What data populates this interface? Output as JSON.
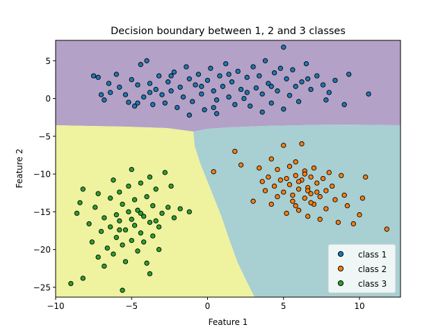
{
  "chart_data": {
    "type": "scatter",
    "title": "Decision boundary between 1, 2 and 3 classes",
    "xlabel": "Feature 1",
    "ylabel": "Feature 2",
    "xlim": [
      -10,
      12.7
    ],
    "ylim": [
      -26.3,
      7.7
    ],
    "xticks": [
      -10,
      -5,
      0,
      5,
      10
    ],
    "yticks": [
      5,
      0,
      -5,
      -10,
      -15,
      -20,
      -25
    ],
    "grid": false,
    "legend_placement": "lower-right",
    "regions": [
      {
        "name": "class 1 region",
        "color": "#b3a1c7"
      },
      {
        "name": "class 2 region",
        "color": "#a8cfd2"
      },
      {
        "name": "class 3 region",
        "color": "#eff29f"
      }
    ],
    "series": [
      {
        "name": "class 1",
        "color": "#1f77b4",
        "points": [
          [
            -7.5,
            3.0
          ],
          [
            -7.2,
            2.8
          ],
          [
            -7.0,
            0.5
          ],
          [
            -6.8,
            -0.2
          ],
          [
            -6.5,
            2.0
          ],
          [
            -6.4,
            0.8
          ],
          [
            -6.0,
            3.2
          ],
          [
            -5.8,
            1.5
          ],
          [
            -5.4,
            0.5
          ],
          [
            -5.2,
            -0.5
          ],
          [
            -5.0,
            2.5
          ],
          [
            -4.8,
            -1.0
          ],
          [
            -4.6,
            1.8
          ],
          [
            -4.4,
            4.5
          ],
          [
            -4.2,
            0.2
          ],
          [
            -4.0,
            5.0
          ],
          [
            -3.8,
            2.0
          ],
          [
            -3.6,
            -0.8
          ],
          [
            -3.4,
            1.2
          ],
          [
            -3.2,
            3.0
          ],
          [
            -3.0,
            0.5
          ],
          [
            -2.8,
            -0.6
          ],
          [
            -2.6,
            2.2
          ],
          [
            -2.4,
            1.0
          ],
          [
            -2.2,
            3.5
          ],
          [
            -2.0,
            -1.2
          ],
          [
            -1.8,
            1.5
          ],
          [
            -1.6,
            0.2
          ],
          [
            -1.4,
            4.2
          ],
          [
            -1.2,
            2.6
          ],
          [
            -1.0,
            -0.4
          ],
          [
            -0.8,
            1.8
          ],
          [
            -0.6,
            3.2
          ],
          [
            -0.4,
            0.6
          ],
          [
            -0.2,
            -1.5
          ],
          [
            0.0,
            2.4
          ],
          [
            0.2,
            4.0
          ],
          [
            0.4,
            1.0
          ],
          [
            0.6,
            -0.2
          ],
          [
            0.8,
            3.0
          ],
          [
            1.0,
            1.6
          ],
          [
            1.2,
            4.6
          ],
          [
            1.4,
            0.2
          ],
          [
            1.6,
            2.2
          ],
          [
            1.8,
            -0.8
          ],
          [
            2.0,
            3.6
          ],
          [
            2.2,
            1.2
          ],
          [
            2.4,
            0.0
          ],
          [
            2.6,
            2.8
          ],
          [
            2.8,
            -1.0
          ],
          [
            3.0,
            4.2
          ],
          [
            3.2,
            1.4
          ],
          [
            3.4,
            3.0
          ],
          [
            3.6,
            0.6
          ],
          [
            3.8,
            5.0
          ],
          [
            4.0,
            2.0
          ],
          [
            4.2,
            -0.6
          ],
          [
            4.4,
            3.4
          ],
          [
            4.6,
            1.0
          ],
          [
            4.8,
            4.0
          ],
          [
            5.0,
            6.8
          ],
          [
            5.2,
            2.6
          ],
          [
            5.4,
            0.4
          ],
          [
            5.6,
            3.8
          ],
          [
            5.8,
            1.6
          ],
          [
            6.0,
            -0.4
          ],
          [
            6.2,
            2.2
          ],
          [
            6.5,
            4.6
          ],
          [
            6.8,
            1.2
          ],
          [
            7.2,
            3.0
          ],
          [
            7.6,
            1.8
          ],
          [
            8.0,
            0.8
          ],
          [
            8.4,
            2.4
          ],
          [
            9.0,
            -0.8
          ],
          [
            9.3,
            3.2
          ],
          [
            10.6,
            0.6
          ],
          [
            -1.2,
            -2.2
          ],
          [
            0.6,
            -2.0
          ],
          [
            3.6,
            -1.8
          ],
          [
            5.0,
            -1.4
          ],
          [
            -4.6,
            -0.6
          ],
          [
            -3.8,
            0.8
          ],
          [
            -2.4,
            3.0
          ],
          [
            -0.4,
            1.6
          ],
          [
            0.4,
            -1.2
          ],
          [
            1.4,
            3.2
          ],
          [
            2.6,
            0.8
          ],
          [
            4.2,
            1.6
          ],
          [
            6.6,
            2.6
          ],
          [
            7.8,
            -0.2
          ]
        ]
      },
      {
        "name": "class 2",
        "color": "#ff7f0e",
        "points": [
          [
            1.8,
            -7.0
          ],
          [
            2.2,
            -8.8
          ],
          [
            0.4,
            -9.7
          ],
          [
            3.0,
            -13.6
          ],
          [
            3.4,
            -9.2
          ],
          [
            3.6,
            -11.0
          ],
          [
            3.8,
            -12.2
          ],
          [
            4.0,
            -10.4
          ],
          [
            4.2,
            -8.0
          ],
          [
            4.2,
            -14.0
          ],
          [
            4.4,
            -11.6
          ],
          [
            4.6,
            -9.4
          ],
          [
            4.6,
            -13.0
          ],
          [
            4.8,
            -10.8
          ],
          [
            5.0,
            -6.2
          ],
          [
            5.0,
            -12.4
          ],
          [
            5.2,
            -15.2
          ],
          [
            5.4,
            -9.0
          ],
          [
            5.4,
            -11.4
          ],
          [
            5.6,
            -13.6
          ],
          [
            5.8,
            -10.2
          ],
          [
            5.8,
            -8.4
          ],
          [
            6.0,
            -12.0
          ],
          [
            6.0,
            -14.8
          ],
          [
            6.2,
            -6.0
          ],
          [
            6.2,
            -10.8
          ],
          [
            6.4,
            -13.2
          ],
          [
            6.4,
            -9.6
          ],
          [
            6.6,
            -11.8
          ],
          [
            6.6,
            -15.6
          ],
          [
            6.8,
            -10.4
          ],
          [
            6.8,
            -12.6
          ],
          [
            7.0,
            -14.0
          ],
          [
            7.0,
            -9.2
          ],
          [
            7.2,
            -11.2
          ],
          [
            7.4,
            -13.0
          ],
          [
            7.4,
            -16.0
          ],
          [
            7.6,
            -10.6
          ],
          [
            7.8,
            -12.2
          ],
          [
            7.8,
            -14.6
          ],
          [
            8.0,
            -9.8
          ],
          [
            8.2,
            -11.6
          ],
          [
            8.4,
            -13.4
          ],
          [
            8.6,
            -16.4
          ],
          [
            8.8,
            -10.2
          ],
          [
            9.0,
            -12.8
          ],
          [
            9.2,
            -14.2
          ],
          [
            9.6,
            -16.6
          ],
          [
            10.0,
            -15.4
          ],
          [
            10.2,
            -13.2
          ],
          [
            10.4,
            -10.4
          ],
          [
            11.8,
            -17.3
          ],
          [
            5.2,
            -10.6
          ],
          [
            5.6,
            -12.8
          ],
          [
            6.0,
            -11.0
          ],
          [
            6.4,
            -10.0
          ],
          [
            6.8,
            -13.8
          ],
          [
            7.2,
            -12.4
          ],
          [
            5.8,
            -14.2
          ],
          [
            6.6,
            -12.2
          ]
        ]
      },
      {
        "name": "class 3",
        "color": "#2ca02c",
        "points": [
          [
            -9.0,
            -24.5
          ],
          [
            -8.6,
            -15.2
          ],
          [
            -8.4,
            -13.8
          ],
          [
            -8.2,
            -12.0
          ],
          [
            -8.2,
            -23.8
          ],
          [
            -7.8,
            -16.6
          ],
          [
            -7.6,
            -19.0
          ],
          [
            -7.4,
            -14.4
          ],
          [
            -7.2,
            -21.0
          ],
          [
            -7.2,
            -12.6
          ],
          [
            -7.0,
            -17.6
          ],
          [
            -6.8,
            -15.8
          ],
          [
            -6.8,
            -22.2
          ],
          [
            -6.6,
            -19.8
          ],
          [
            -6.4,
            -13.2
          ],
          [
            -6.4,
            -17.0
          ],
          [
            -6.2,
            -10.8
          ],
          [
            -6.2,
            -20.6
          ],
          [
            -6.0,
            -15.4
          ],
          [
            -6.0,
            -18.4
          ],
          [
            -5.8,
            -12.4
          ],
          [
            -5.8,
            -16.2
          ],
          [
            -5.6,
            -19.4
          ],
          [
            -5.6,
            -14.0
          ],
          [
            -5.4,
            -21.6
          ],
          [
            -5.4,
            -17.4
          ],
          [
            -5.2,
            -11.6
          ],
          [
            -5.2,
            -15.0
          ],
          [
            -5.0,
            -18.8
          ],
          [
            -5.0,
            -9.4
          ],
          [
            -4.8,
            -16.8
          ],
          [
            -4.8,
            -13.4
          ],
          [
            -4.6,
            -20.2
          ],
          [
            -4.6,
            -14.8
          ],
          [
            -4.4,
            -17.8
          ],
          [
            -4.4,
            -11.2
          ],
          [
            -4.2,
            -15.6
          ],
          [
            -4.2,
            -19.0
          ],
          [
            -4.0,
            -13.0
          ],
          [
            -4.0,
            -21.8
          ],
          [
            -3.8,
            -16.4
          ],
          [
            -3.8,
            -10.4
          ],
          [
            -3.6,
            -18.2
          ],
          [
            -3.6,
            -14.2
          ],
          [
            -3.4,
            -12.0
          ],
          [
            -3.2,
            -17.0
          ],
          [
            -3.2,
            -20.0
          ],
          [
            -3.0,
            -15.2
          ],
          [
            -2.8,
            -9.8
          ],
          [
            -2.6,
            -14.4
          ],
          [
            -2.4,
            -11.6
          ],
          [
            -2.2,
            -15.8
          ],
          [
            -1.8,
            -14.6
          ],
          [
            -1.2,
            -15.0
          ],
          [
            -5.6,
            -25.4
          ],
          [
            -3.8,
            -23.2
          ],
          [
            -5.0,
            -16.0
          ],
          [
            -4.4,
            -15.2
          ],
          [
            -5.8,
            -17.4
          ],
          [
            -3.4,
            -16.2
          ]
        ]
      }
    ]
  }
}
